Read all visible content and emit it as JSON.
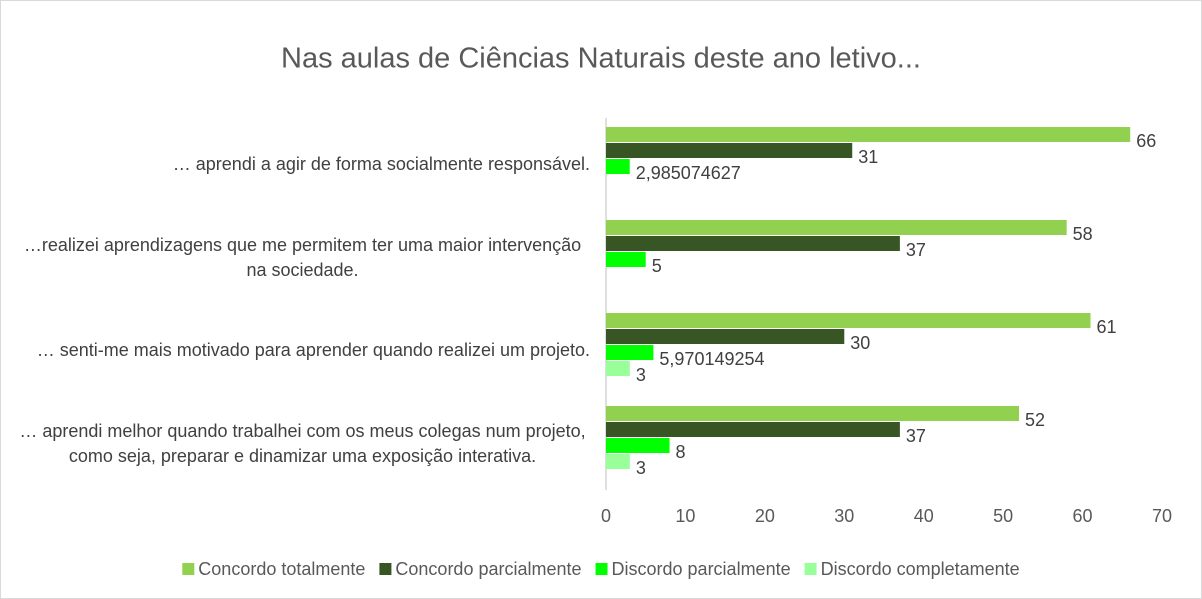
{
  "chart_data": {
    "type": "bar",
    "orientation": "horizontal",
    "title": "Nas aulas de Ciências Naturais deste ano letivo...",
    "categories": [
      "… aprendi a agir de forma socialmente responsável.",
      "…realizei aprendizagens que me permitem ter uma maior intervenção na sociedade.",
      "… senti-me mais motivado para aprender quando realizei um projeto.",
      "… aprendi melhor quando trabalhei com os meus colegas num projeto, como seja, preparar e dinamizar uma exposição interativa."
    ],
    "series": [
      {
        "name": "Concordo totalmente",
        "color": "#92d050",
        "values": [
          66,
          58,
          61,
          52
        ]
      },
      {
        "name": "Concordo parcialmente",
        "color": "#375623",
        "values": [
          31,
          37,
          30,
          37
        ]
      },
      {
        "name": "Discordo parcialmente",
        "color": "#00ff00",
        "values": [
          2.985074627,
          5,
          5.970149254,
          8
        ],
        "value_labels": [
          "2,985074627",
          "5",
          "5,970149254",
          "8"
        ]
      },
      {
        "name": "Discordo completamente",
        "color": "#99ff99",
        "values": [
          null,
          null,
          3,
          3
        ]
      }
    ],
    "xlim": [
      0,
      70
    ],
    "xticks": [
      0,
      10,
      20,
      30,
      40,
      50,
      60,
      70
    ],
    "grid": false,
    "legend": "bottom"
  }
}
